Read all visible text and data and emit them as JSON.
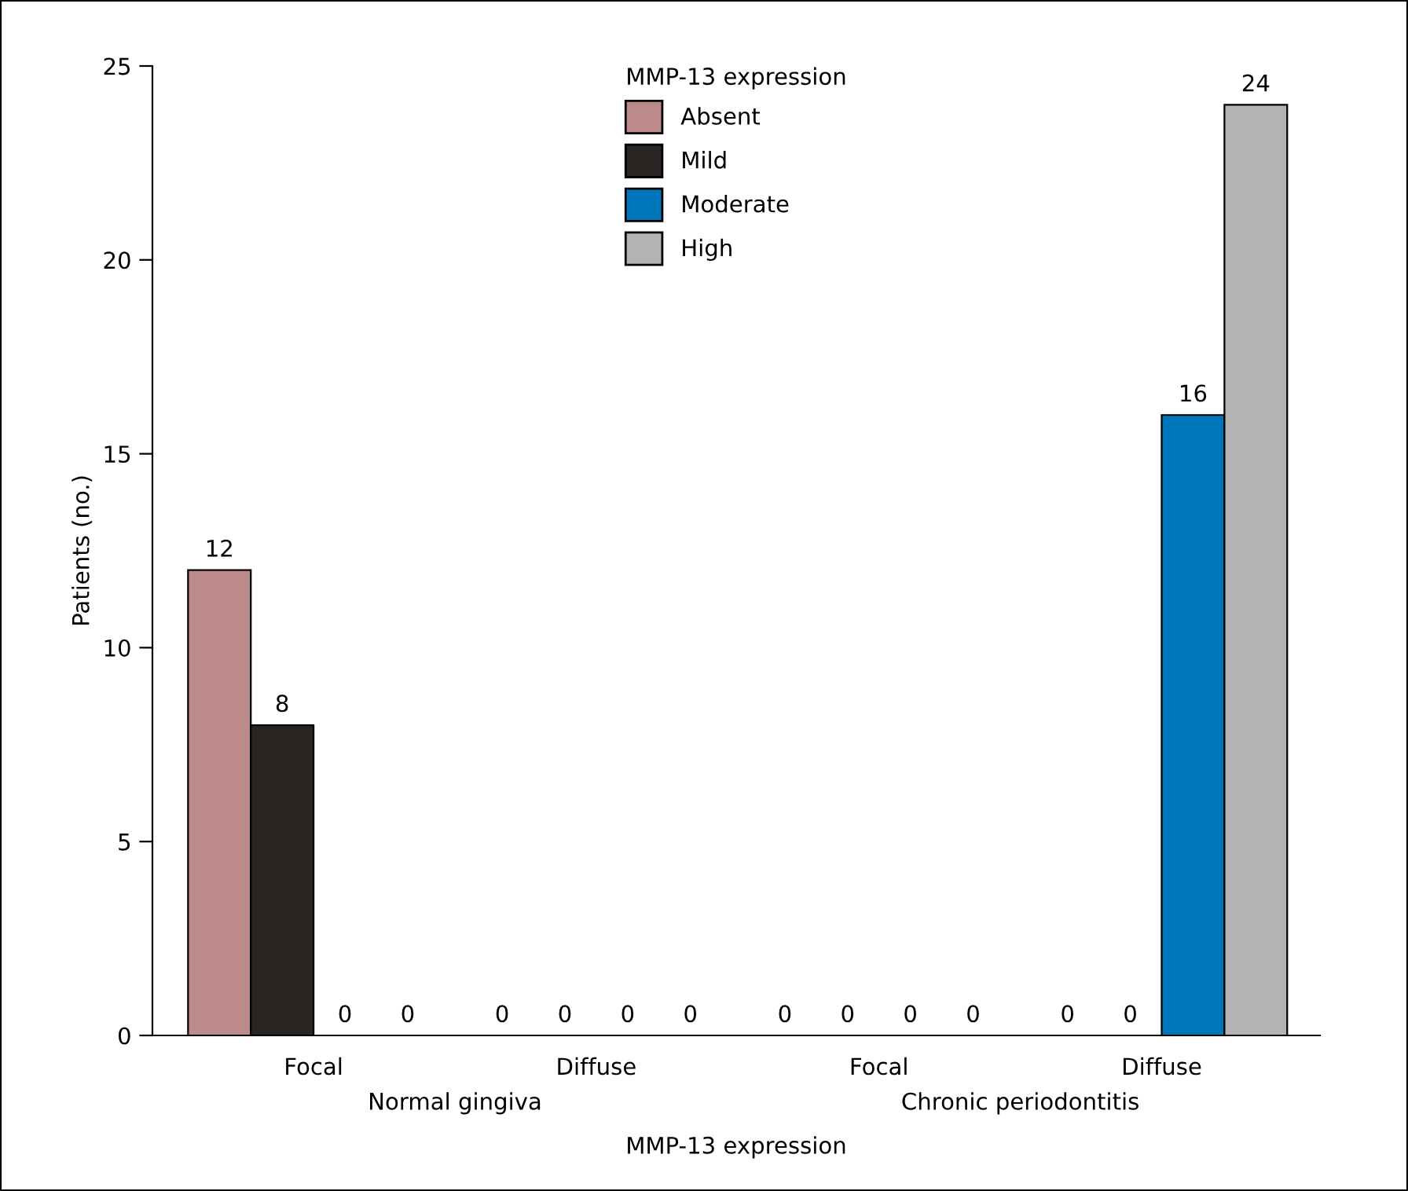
{
  "chart_data": {
    "type": "bar",
    "categories": [
      "Focal",
      "Diffuse",
      "Focal",
      "Diffuse"
    ],
    "series": [
      {
        "name": "Absent",
        "color": "#bc8a8a",
        "values": [
          12,
          0,
          0,
          0
        ]
      },
      {
        "name": "Mild",
        "color": "#2a2522",
        "values": [
          8,
          0,
          0,
          0
        ]
      },
      {
        "name": "Moderate",
        "color": "#0077bb",
        "values": [
          0,
          0,
          0,
          16
        ]
      },
      {
        "name": "High",
        "color": "#b3b3b3",
        "values": [
          0,
          0,
          0,
          24
        ]
      }
    ],
    "annotations": [
      "Normal gingiva",
      "Chronic periodontitis"
    ],
    "xlabel": "MMP-13 expression",
    "ylabel": "Patients (no.)",
    "legend_title": "MMP-13 expression",
    "ylim": [
      0,
      25
    ],
    "yticks": [
      0,
      5,
      10,
      15,
      20,
      25
    ],
    "data_labels": true,
    "legend": "top",
    "grid": false
  }
}
